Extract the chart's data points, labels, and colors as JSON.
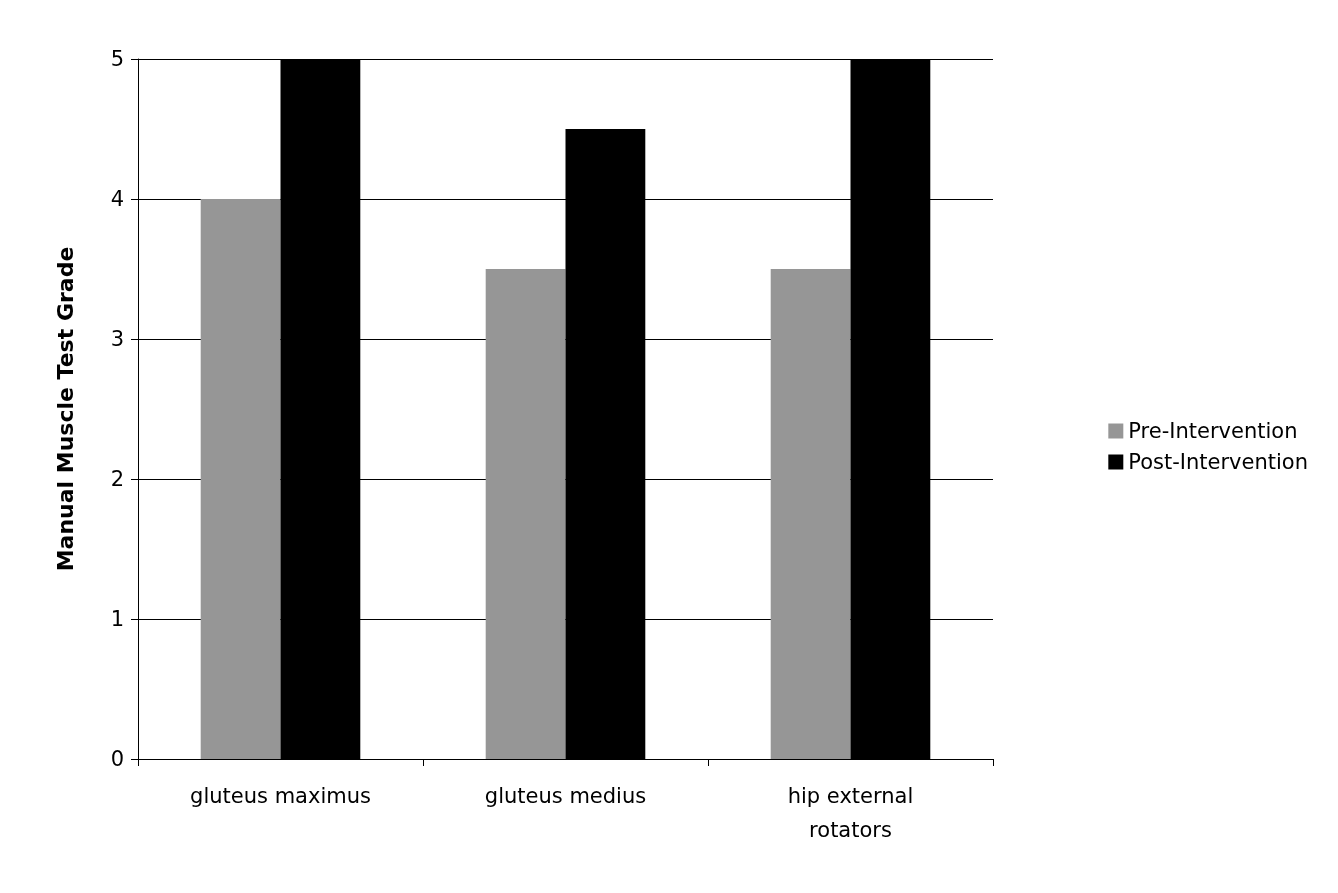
{
  "chart_data": {
    "type": "bar",
    "ylabel": "Manual Muscle Test Grade",
    "categories": [
      "gluteus maximus",
      "gluteus medius",
      "hip external\nrotators"
    ],
    "series": [
      {
        "name": "Pre-Intervention",
        "color": "#969696",
        "values": [
          4,
          3.5,
          3.5
        ]
      },
      {
        "name": "Post-Intervention",
        "color": "#000000",
        "values": [
          5,
          4.5,
          5
        ]
      }
    ],
    "ylim": [
      0,
      5
    ],
    "yticks": [
      0,
      1,
      2,
      3,
      4,
      5
    ],
    "grid": "y",
    "legend": "right"
  }
}
